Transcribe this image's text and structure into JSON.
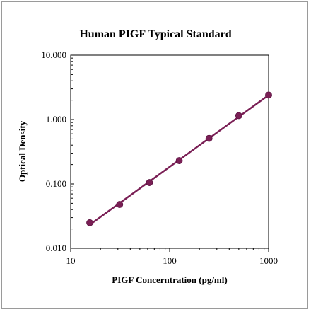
{
  "chart_data": {
    "type": "scatter",
    "title": "Human PIGF Typical Standard",
    "xlabel": "PIGF Concerntration (pg/ml)",
    "ylabel": "Optical Density",
    "x_scale": "log",
    "y_scale": "log",
    "xlim": [
      10,
      1000
    ],
    "ylim": [
      0.01,
      10
    ],
    "x_ticks": [
      "10",
      "100",
      "1000"
    ],
    "y_ticks": [
      "10.000",
      "1.000",
      "0.100",
      "0.010"
    ],
    "grid": false,
    "series": [
      {
        "x": [
          15.6,
          31.25,
          62.5,
          125,
          250,
          500,
          1000
        ],
        "y": [
          0.025,
          0.048,
          0.105,
          0.23,
          0.51,
          1.15,
          2.4
        ],
        "color": "#7a1f55",
        "fit_line": true
      }
    ]
  }
}
